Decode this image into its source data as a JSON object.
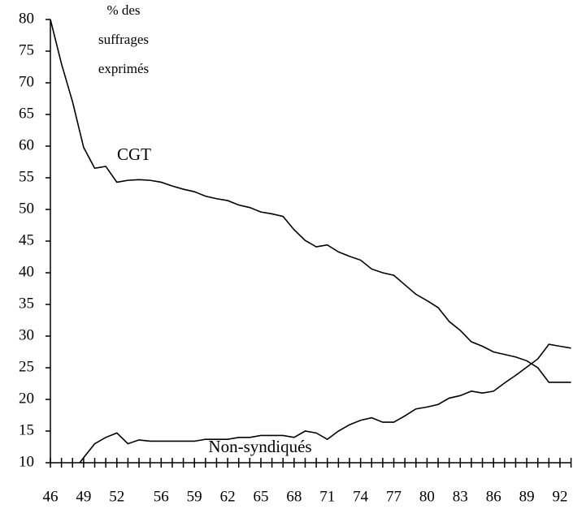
{
  "chart_data": {
    "type": "line",
    "annotations": [
      "% des",
      "suffrages",
      "exprimés"
    ],
    "x": [
      46,
      47,
      48,
      49,
      50,
      51,
      52,
      53,
      54,
      55,
      56,
      57,
      58,
      59,
      60,
      61,
      62,
      63,
      64,
      65,
      66,
      67,
      68,
      69,
      70,
      71,
      72,
      73,
      74,
      75,
      76,
      77,
      78,
      79,
      80,
      81,
      82,
      83,
      84,
      85,
      86,
      87,
      88,
      89,
      90,
      91,
      92,
      93
    ],
    "series": [
      {
        "name": "CGT",
        "color": "#000000",
        "values": [
          80,
          73,
          67,
          59.8,
          56.5,
          56.8,
          54.3,
          54.6,
          54.7,
          54.6,
          54.3,
          53.7,
          53.2,
          52.8,
          52.1,
          51.7,
          51.4,
          50.7,
          50.3,
          49.6,
          49.3,
          48.9,
          46.8,
          45.1,
          44.1,
          44.4,
          43.3,
          42.6,
          42.0,
          40.6,
          40.0,
          39.6,
          38.1,
          36.6,
          35.6,
          34.5,
          32.3,
          30.9,
          29.1,
          28.4,
          27.5,
          27.1,
          26.7,
          26.1,
          25.0,
          22.7,
          22.7,
          22.7
        ]
      },
      {
        "name": "Non-syndiqués",
        "color": "#000000",
        "values": [
          null,
          null,
          8.5,
          10.8,
          13.0,
          14.0,
          14.7,
          13.0,
          13.6,
          13.4,
          13.4,
          13.4,
          13.4,
          13.4,
          13.7,
          13.7,
          13.7,
          14.0,
          14.0,
          14.3,
          14.3,
          14.3,
          14.0,
          15.0,
          14.7,
          13.7,
          15.0,
          16.0,
          16.7,
          17.1,
          16.4,
          16.4,
          17.4,
          18.5,
          18.8,
          19.2,
          20.2,
          20.6,
          21.3,
          21.0,
          21.3,
          22.6,
          23.8,
          25.1,
          26.4,
          28.7,
          28.4,
          28.1
        ]
      }
    ],
    "xlim": [
      46,
      93
    ],
    "xticks": [
      46,
      49,
      52,
      56,
      59,
      62,
      65,
      68,
      71,
      74,
      77,
      80,
      83,
      86,
      89,
      92
    ],
    "ylim": [
      10,
      80
    ],
    "yticks": [
      10,
      15,
      20,
      25,
      30,
      35,
      40,
      45,
      50,
      55,
      60,
      65,
      70,
      75,
      80
    ]
  }
}
